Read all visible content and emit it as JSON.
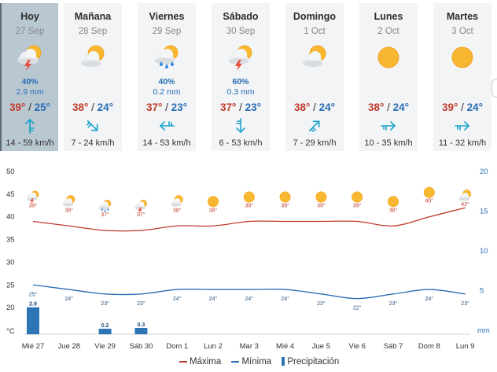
{
  "colors": {
    "max": "#c0392b",
    "min": "#2a6db5",
    "precip": "#2e75b6",
    "wind": "#1aa3c9",
    "selected_bg": "#b9c7d1"
  },
  "days": [
    {
      "name": "Hoy",
      "date": "27 Sep",
      "icon": "thunderstorm-cloud-icon",
      "prob": "40%",
      "mm": "2.9 mm",
      "max": "39°",
      "min": "25°",
      "wind_icon": "wind-arrow-north-icon",
      "wind": "14 - 59 km/h",
      "selected": true
    },
    {
      "name": "Mañana",
      "date": "28 Sep",
      "icon": "partly-cloudy-icon",
      "prob": "",
      "mm": "",
      "max": "38°",
      "min": "24°",
      "wind_icon": "wind-arrow-southeast-icon",
      "wind": "7 - 24 km/h"
    },
    {
      "name": "Viernes",
      "date": "29 Sep",
      "icon": "rain-cloud-icon",
      "prob": "40%",
      "mm": "0.2 mm",
      "max": "37°",
      "min": "23°",
      "wind_icon": "wind-arrow-west-icon",
      "wind": "14 - 53 km/h"
    },
    {
      "name": "Sábado",
      "date": "30 Sep",
      "icon": "thunderstorm-cloud-icon",
      "prob": "60%",
      "mm": "0.3 mm",
      "max": "37°",
      "min": "23°",
      "wind_icon": "wind-arrow-south-icon",
      "wind": "6 - 53 km/h"
    },
    {
      "name": "Domingo",
      "date": "1 Oct",
      "icon": "partly-cloudy-icon",
      "prob": "",
      "mm": "",
      "max": "38°",
      "min": "24°",
      "wind_icon": "wind-arrow-northeast-icon",
      "wind": "7 - 29 km/h"
    },
    {
      "name": "Lunes",
      "date": "2 Oct",
      "icon": "sun-icon",
      "prob": "",
      "mm": "",
      "max": "38°",
      "min": "24°",
      "wind_icon": "wind-arrow-east-icon",
      "wind": "10 - 35 km/h"
    },
    {
      "name": "Martes",
      "date": "3 Oct",
      "icon": "sun-icon",
      "prob": "",
      "mm": "",
      "max": "39°",
      "min": "24°",
      "wind_icon": "wind-arrow-east-icon",
      "wind": "11 - 32 km/h"
    }
  ],
  "chart_data": {
    "type": "line",
    "x": [
      "Mié 27",
      "Jue 28",
      "Vie 29",
      "Sáb 30",
      "Dom 1",
      "Lun 2",
      "Mar 3",
      "Mié 4",
      "Jue 5",
      "Vie 6",
      "Sáb 7",
      "Dom 8",
      "Lun 9"
    ],
    "icons": [
      "thunderstorm-cloud-icon",
      "partly-cloudy-icon",
      "rain-cloud-icon",
      "thunderstorm-cloud-icon",
      "partly-cloudy-icon",
      "sun-icon",
      "sun-icon",
      "sun-icon",
      "sun-icon",
      "sun-icon",
      "sun-icon",
      "sun-icon",
      "partly-cloudy-icon"
    ],
    "series": [
      {
        "name": "Máxima",
        "values": [
          39,
          38,
          37,
          37,
          38,
          38,
          39,
          39,
          39,
          39,
          38,
          40,
          42
        ],
        "labels": [
          "39°",
          "38°",
          "37°",
          "37°",
          "38°",
          "38°",
          "39°",
          "39°",
          "39°",
          "39°",
          "38°",
          "40°",
          "42°"
        ]
      },
      {
        "name": "Mínima",
        "values": [
          25,
          24,
          23,
          23,
          24,
          24,
          24,
          24,
          23,
          22,
          23,
          24,
          23
        ],
        "labels": [
          "25°",
          "24°",
          "23°",
          "23°",
          "24°",
          "24°",
          "24°",
          "24°",
          "23°",
          "22°",
          "23°",
          "24°",
          "23°"
        ]
      },
      {
        "name": "Precipitación",
        "values": [
          2.9,
          0,
          0.2,
          0.3,
          0,
          0,
          0,
          0,
          0,
          0,
          0,
          0,
          0
        ],
        "labels": [
          "2.9",
          "",
          "0.2",
          "0.3",
          "",
          "",
          "",
          "",
          "",
          "",
          "",
          "",
          ""
        ]
      }
    ],
    "y_left": {
      "ticks": [
        "50",
        "45",
        "40",
        "35",
        "30",
        "25",
        "20",
        "°C"
      ],
      "range": [
        15,
        50
      ]
    },
    "y_right": {
      "ticks": [
        "20",
        "15",
        "10",
        "5",
        "mm"
      ],
      "range": [
        0,
        20
      ]
    },
    "legend": [
      "Máxima",
      "Mínima",
      "Precipitación"
    ],
    "legend_position": "bottom"
  }
}
